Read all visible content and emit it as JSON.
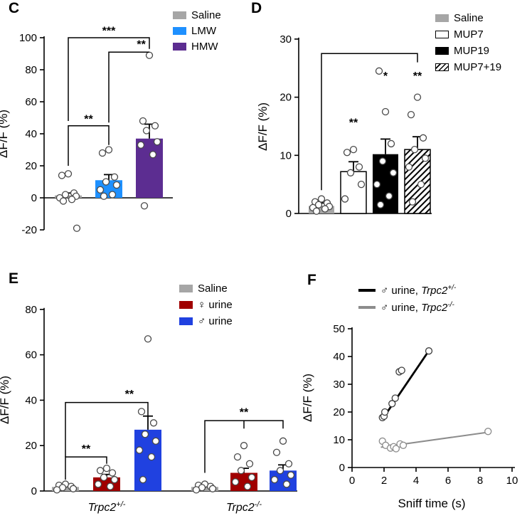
{
  "chart_data": [
    {
      "panel": "C",
      "type": "bar",
      "ylabel": "ΔF/F (%)",
      "ylim": [
        -20,
        100
      ],
      "yticks": [
        -20,
        0,
        20,
        40,
        60,
        80,
        100
      ],
      "legend": [
        {
          "label": "Saline",
          "style": "solid",
          "color": "#a6a6a6"
        },
        {
          "label": "LMW",
          "style": "solid",
          "color": "#1e90ff"
        },
        {
          "label": "HMW",
          "style": "solid",
          "color": "#5c2d91"
        }
      ],
      "bars": [
        {
          "label": "Saline",
          "style": "solid",
          "color": "#a6a6a6",
          "value": 1.5,
          "sem": 1.5,
          "points": [
            15,
            14,
            3,
            2,
            1,
            0,
            -1,
            -2,
            -19
          ]
        },
        {
          "label": "LMW",
          "style": "solid",
          "color": "#1e90ff",
          "value": 11,
          "sem": 3.5,
          "points": [
            30,
            28,
            13,
            10,
            8,
            5,
            2,
            1
          ]
        },
        {
          "label": "HMW",
          "style": "solid",
          "color": "#5c2d91",
          "value": 37,
          "sem": 9,
          "points": [
            89,
            48,
            45,
            42,
            35,
            33,
            27,
            -5
          ]
        }
      ],
      "significance": [
        {
          "path": [
            [
              0,
              20
            ],
            [
              0,
              45
            ],
            [
              1,
              45
            ],
            [
              1,
              33
            ]
          ],
          "label": "**",
          "label_at": [
            0.5,
            47
          ]
        },
        {
          "path": [
            [
              0,
              48
            ],
            [
              0,
              100
            ],
            [
              2,
              100
            ],
            [
              2,
              93
            ]
          ],
          "label": "***",
          "label_at": [
            1,
            102
          ]
        },
        {
          "path": [
            [
              1,
              47
            ],
            [
              1,
              91
            ],
            [
              2,
              91
            ]
          ],
          "label": "**",
          "label_at": [
            1.8,
            93.5
          ]
        }
      ]
    },
    {
      "panel": "D",
      "type": "bar",
      "ylabel": "ΔF/F (%)",
      "ylim": [
        0,
        30
      ],
      "yticks": [
        0,
        10,
        20,
        30
      ],
      "legend": [
        {
          "label": "Saline",
          "style": "solid",
          "color": "#a6a6a6"
        },
        {
          "label": "MUP7",
          "style": "outline",
          "color": "#ffffff"
        },
        {
          "label": "MUP19",
          "style": "solid",
          "color": "#000000"
        },
        {
          "label": "MUP7+19",
          "style": "hatch",
          "color": "#000000"
        }
      ],
      "bars": [
        {
          "label": "Saline",
          "style": "solid",
          "color": "#a6a6a6",
          "value": 1.3,
          "sem": 0.5,
          "points": [
            2.5,
            2,
            1.8,
            1.5,
            1.2,
            1,
            0.8,
            0.4
          ]
        },
        {
          "label": "MUP7",
          "style": "outline",
          "color": "#ffffff",
          "value": 7.2,
          "sem": 1.7,
          "points": [
            11,
            10.5,
            8,
            7,
            5,
            2.5
          ]
        },
        {
          "label": "MUP19",
          "style": "solid",
          "color": "#000000",
          "value": 10.2,
          "sem": 2.6,
          "points": [
            17.5,
            24.5,
            12,
            9,
            7,
            5,
            3,
            1.5
          ]
        },
        {
          "label": "MUP7+19",
          "style": "hatch",
          "color": "#000000",
          "value": 11,
          "sem": 2.2,
          "points": [
            20,
            17,
            13,
            11,
            9.5,
            8,
            5,
            2
          ]
        }
      ],
      "significance": [
        {
          "path": [
            [
              0,
              4
            ],
            [
              0,
              27.5
            ],
            [
              3,
              27.5
            ],
            [
              3,
              26
            ]
          ],
          "label": "",
          "label_at": [
            0,
            0
          ]
        },
        {
          "path": [],
          "label": "**",
          "label_at": [
            1,
            15
          ]
        },
        {
          "path": [],
          "label": "*",
          "label_at": [
            2,
            23
          ]
        },
        {
          "path": [],
          "label": "**",
          "label_at": [
            3,
            23
          ]
        }
      ]
    },
    {
      "panel": "E",
      "type": "bar",
      "ylabel": "ΔF/F (%)",
      "ylim": [
        0,
        80
      ],
      "yticks": [
        0,
        20,
        40,
        60,
        80
      ],
      "legend": [
        {
          "label": "Saline",
          "style": "solid",
          "color": "#a6a6a6"
        },
        {
          "label": "♀ urine",
          "style": "solid",
          "color": "#a00000"
        },
        {
          "label": "♂ urine",
          "style": "solid",
          "color": "#2041e0"
        }
      ],
      "bars": [
        {
          "label": "Saline",
          "style": "solid",
          "color": "#a6a6a6",
          "value": 1.8,
          "sem": 0.4,
          "points": [
            3,
            2.5,
            2,
            1.5,
            1,
            0.5
          ]
        },
        {
          "label": "♀ urine",
          "style": "solid",
          "color": "#a00000",
          "value": 6,
          "sem": 1.3,
          "points": [
            10,
            9,
            8,
            6,
            5,
            3,
            2
          ]
        },
        {
          "label": "♂ urine",
          "style": "solid",
          "color": "#2041e0",
          "value": 27,
          "sem": 6,
          "points": [
            67,
            35,
            30,
            25,
            22,
            18,
            15,
            5
          ]
        },
        {
          "label": "Saline",
          "style": "solid",
          "color": "#a6a6a6",
          "value": 1.8,
          "sem": 0.4,
          "points": [
            3,
            2.5,
            2,
            1.5,
            1,
            0.5
          ]
        },
        {
          "label": "♀ urine",
          "style": "solid",
          "color": "#a00000",
          "value": 8,
          "sem": 2,
          "points": [
            20,
            15,
            12,
            9,
            6,
            4,
            2
          ]
        },
        {
          "label": "♂ urine",
          "style": "solid",
          "color": "#2041e0",
          "value": 9,
          "sem": 2.5,
          "points": [
            22,
            17,
            12,
            9,
            7,
            5,
            3
          ]
        }
      ],
      "group_labels": [
        {
          "parts": [
            {
              "t": "Trpc2",
              "i": true
            },
            {
              "t": "+/-",
              "i": true,
              "sup": true
            }
          ],
          "center_index": 1
        },
        {
          "parts": [
            {
              "t": "Trpc2",
              "i": true
            },
            {
              "t": "-/-",
              "i": true,
              "sup": true
            }
          ],
          "center_index": 4
        }
      ],
      "significance": [
        {
          "path": [
            [
              0,
              5
            ],
            [
              0,
              15
            ],
            [
              1,
              15
            ],
            [
              1,
              12
            ]
          ],
          "label": "**",
          "label_at": [
            0.5,
            17
          ]
        },
        {
          "path": [
            [
              0,
              15
            ],
            [
              0,
              39
            ],
            [
              2,
              39
            ],
            [
              2,
              33
            ]
          ],
          "label": "**",
          "label_at": [
            1.55,
            41
          ]
        },
        {
          "path": [
            [
              3,
              8
            ],
            [
              3,
              31
            ],
            [
              5,
              31
            ],
            [
              5,
              27.5
            ]
          ],
          "label": "**",
          "label_at": [
            4,
            33
          ]
        },
        {
          "path": [
            [
              4,
              31
            ],
            [
              4,
              27.5
            ]
          ],
          "label": "",
          "label_at": [
            0,
            0
          ]
        }
      ]
    },
    {
      "panel": "F",
      "type": "scatter",
      "xlabel": "Sniff time (s)",
      "ylabel": "ΔF/F (%)",
      "xlim": [
        0,
        10
      ],
      "xticks": [
        0,
        2,
        4,
        6,
        8,
        10
      ],
      "ylim": [
        0,
        50
      ],
      "yticks": [
        0,
        10,
        20,
        30,
        40,
        50
      ],
      "series": [
        {
          "name_parts": [
            {
              "t": "♂ urine, "
            },
            {
              "t": "Trpc2",
              "i": true
            },
            {
              "t": "+/-",
              "i": true,
              "sup": true
            }
          ],
          "line_color": "#000000",
          "line_width": 2.8,
          "point_stroke": "#3d3d3d",
          "points": [
            [
              1.9,
              18
            ],
            [
              2.0,
              18.5
            ],
            [
              2.05,
              20
            ],
            [
              2.5,
              23
            ],
            [
              2.7,
              25
            ],
            [
              2.95,
              34.5
            ],
            [
              3.1,
              35
            ],
            [
              4.8,
              42
            ]
          ],
          "fit_line": [
            [
              1.85,
              17
            ],
            [
              4.85,
              42.5
            ]
          ]
        },
        {
          "name_parts": [
            {
              "t": "♂ urine, "
            },
            {
              "t": "Trpc2",
              "i": true
            },
            {
              "t": "-/-",
              "i": true,
              "sup": true
            }
          ],
          "line_color": "#8c8c8c",
          "line_width": 2,
          "point_stroke": "#8c8c8c",
          "points": [
            [
              1.9,
              9.5
            ],
            [
              2.1,
              8
            ],
            [
              2.4,
              7
            ],
            [
              2.6,
              7.5
            ],
            [
              2.75,
              6.8
            ],
            [
              3.0,
              8.5
            ],
            [
              3.2,
              8
            ],
            [
              8.5,
              13
            ]
          ],
          "fit_line": [
            [
              1.8,
              7.3
            ],
            [
              8.6,
              12.8
            ]
          ]
        }
      ]
    }
  ]
}
